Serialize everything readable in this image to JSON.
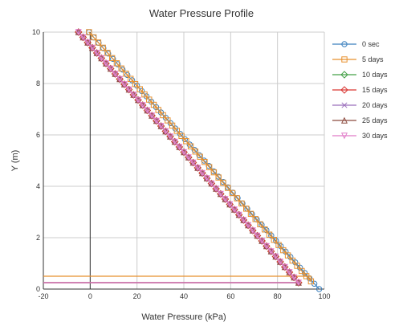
{
  "chart_data": {
    "type": "line",
    "title": "Water Pressure Profile",
    "xlabel": "Water Pressure (kPa)",
    "ylabel": "Y (m)",
    "xlim": [
      -20,
      100
    ],
    "ylim": [
      0,
      10
    ],
    "xticks": [
      -20,
      0,
      20,
      40,
      60,
      80,
      100
    ],
    "yticks": [
      0,
      2,
      4,
      6,
      8,
      10
    ],
    "grid": true,
    "legend_position": "right",
    "series": [
      {
        "name": "0 sec",
        "color": "#3a7fbd",
        "marker": "circle",
        "points": [
          [
            -0.5,
            10
          ],
          [
            97.8,
            0
          ]
        ]
      },
      {
        "name": "5 days",
        "color": "#e8902e",
        "marker": "square",
        "points": [
          [
            -0.5,
            10
          ],
          [
            94.3,
            0.3
          ],
          [
            94.3,
            0.5
          ],
          [
            -20,
            0.5
          ]
        ]
      },
      {
        "name": "10 days",
        "color": "#44a047",
        "marker": "diamond",
        "points": [
          [
            -5.0,
            10
          ],
          [
            89.0,
            0.25
          ],
          [
            89.0,
            0.25
          ],
          [
            -20,
            0.25
          ]
        ]
      },
      {
        "name": "15 days",
        "color": "#d93632",
        "marker": "diamond",
        "points": [
          [
            -5.0,
            10
          ],
          [
            89.0,
            0.25
          ],
          [
            89.0,
            0.25
          ],
          [
            -20,
            0.25
          ]
        ]
      },
      {
        "name": "20 days",
        "color": "#9b6fbc",
        "marker": "cross",
        "points": [
          [
            -5.0,
            10
          ],
          [
            89.0,
            0.25
          ],
          [
            89.0,
            0.25
          ],
          [
            -20,
            0.25
          ]
        ]
      },
      {
        "name": "25 days",
        "color": "#8c4a3e",
        "marker": "triangle",
        "points": [
          [
            -5.0,
            10
          ],
          [
            89.0,
            0.25
          ],
          [
            89.0,
            0.25
          ],
          [
            -20,
            0.25
          ]
        ]
      },
      {
        "name": "30 days",
        "color": "#e07bc8",
        "marker": "triangle-down",
        "points": [
          [
            -5.0,
            10
          ],
          [
            89.0,
            0.25
          ],
          [
            89.0,
            0.25
          ],
          [
            -20,
            0.25
          ]
        ]
      }
    ]
  }
}
